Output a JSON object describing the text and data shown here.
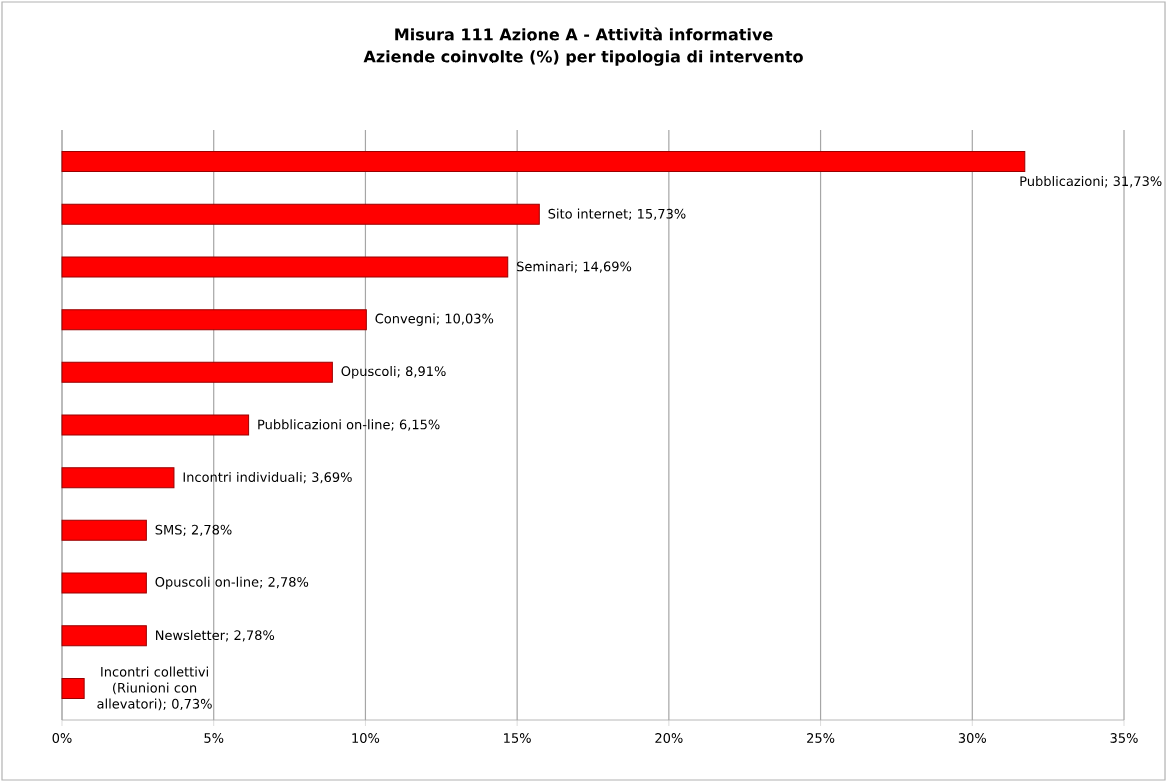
{
  "chart_data": {
    "type": "bar",
    "orientation": "horizontal",
    "title": "Misura 111 Azione A - Attività informative",
    "subtitle": "Aziende coinvolte (%) per tipologia di intervento",
    "categories": [
      null,
      null,
      null,
      null,
      null,
      null,
      null,
      null,
      null,
      null,
      null
    ],
    "values": [
      31.73,
      15.73,
      14.69,
      10.03,
      8.91,
      6.15,
      3.69,
      2.78,
      2.78,
      2.78,
      0.73
    ],
    "value_labels": [
      "Pubblicazioni;  31,73%",
      "Sito internet; 15,73%",
      "Seminari;  14,69%",
      "Convegni;  10,03%",
      "Opuscoli;  8,91%",
      "Pubblicazioni on-line; 6,15%",
      "Incontri individuali; 3,69%",
      "SMS; 2,78%",
      "Opuscoli on-line; 2,78%",
      "Newsletter; 2,78%",
      "Incontri collettivi (Riunioni con allevatori); 0,73%"
    ],
    "color": "#ff0000",
    "xlim": [
      0,
      35
    ],
    "xticks": [
      {
        "value": 0,
        "label": "0%"
      },
      {
        "value": 5,
        "label": "5%"
      },
      {
        "value": 10,
        "label": "10%"
      },
      {
        "value": 15,
        "label": "15%"
      },
      {
        "value": 20,
        "label": "20%"
      },
      {
        "value": 25,
        "label": "25%"
      },
      {
        "value": 30,
        "label": "30%"
      },
      {
        "value": 35,
        "label": "35%"
      }
    ],
    "grid": "x",
    "tick_labels": "x"
  }
}
